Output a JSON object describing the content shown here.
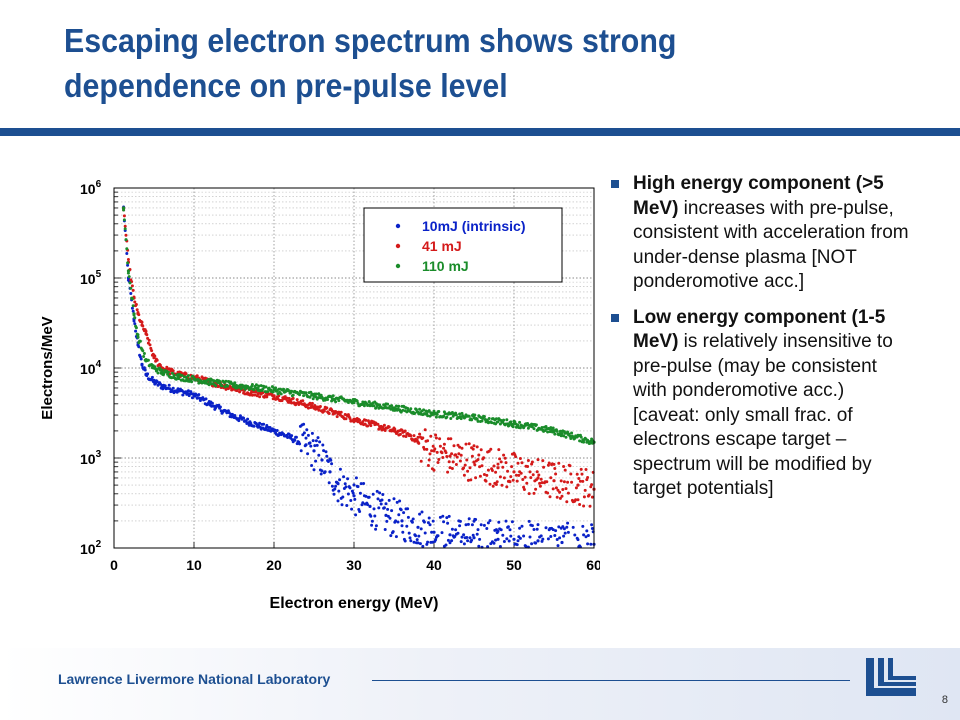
{
  "slide": {
    "title_line1": "Escaping electron spectrum shows strong",
    "title_line2": "dependence on pre-pulse level",
    "bullets": [
      {
        "bold": "High energy component (>5 MeV)",
        "text": " increases with pre-pulse, consistent with acceleration from under-dense plasma [NOT ponderomotive acc.]"
      },
      {
        "bold": "Low energy component (1-5 MeV)",
        "text": " is relatively insensitive to pre-pulse (may be consistent with ponderomotive acc.) [caveat: only small frac. of electrons escape target – spectrum will be modified by target potentials]"
      }
    ],
    "footer_org": "Lawrence Livermore National Laboratory",
    "page_number": "8",
    "colors": {
      "accent": "#1d4f91",
      "blue_series": "#0a22c8",
      "red_series": "#d41a1a",
      "green_series": "#1a8c2a"
    }
  },
  "chart_data": {
    "type": "scatter",
    "xlabel": "Electron energy (MeV)",
    "ylabel": "Electrons/MeV",
    "xlim": [
      0,
      60
    ],
    "ylim": [
      100,
      1000000
    ],
    "yscale": "log",
    "grid": true,
    "xticks": [
      0,
      10,
      20,
      30,
      40,
      50,
      60
    ],
    "yticks": [
      {
        "value": 100,
        "base": "10",
        "exp": "2"
      },
      {
        "value": 1000,
        "base": "10",
        "exp": "3"
      },
      {
        "value": 10000,
        "base": "10",
        "exp": "4"
      },
      {
        "value": 100000,
        "base": "10",
        "exp": "5"
      },
      {
        "value": 1000000,
        "base": "10",
        "exp": "6"
      }
    ],
    "legend_position": "top-right",
    "series": [
      {
        "name": "10mJ (intrinsic)",
        "color": "#0a22c8",
        "x": [
          1.2,
          1.8,
          2.5,
          3,
          3.5,
          4,
          5,
          6,
          8,
          10,
          12,
          15,
          18,
          20,
          22,
          24,
          25,
          26,
          27,
          28,
          30,
          32,
          34,
          36,
          38,
          40,
          42,
          45,
          48,
          50,
          53,
          56,
          60
        ],
        "y": [
          600000,
          100000,
          35000,
          18000,
          11000,
          8500,
          7000,
          6300,
          5600,
          5000,
          4000,
          2900,
          2300,
          2000,
          1700,
          1400,
          1200,
          950,
          700,
          520,
          380,
          290,
          230,
          200,
          170,
          150,
          140,
          130,
          125,
          125,
          120,
          115,
          110
        ]
      },
      {
        "name": "41 mJ",
        "color": "#d41a1a",
        "x": [
          1.2,
          1.8,
          2.5,
          3,
          3.5,
          4,
          5,
          6,
          8,
          10,
          12,
          15,
          18,
          20,
          22,
          25,
          28,
          30,
          32,
          35,
          37,
          38,
          40,
          42,
          45,
          48,
          50,
          53,
          55,
          58,
          60
        ],
        "y": [
          600000,
          150000,
          60000,
          40000,
          30000,
          24000,
          13000,
          10000,
          8500,
          7800,
          7000,
          5900,
          5200,
          4900,
          4400,
          3700,
          3100,
          2700,
          2400,
          2000,
          1800,
          1500,
          1200,
          1050,
          900,
          780,
          700,
          600,
          560,
          500,
          450
        ]
      },
      {
        "name": "110 mJ",
        "color": "#1a8c2a",
        "x": [
          1.2,
          1.8,
          2.5,
          3,
          4,
          5,
          6,
          8,
          10,
          12,
          15,
          18,
          20,
          25,
          30,
          35,
          40,
          45,
          50,
          55,
          60
        ],
        "y": [
          600000,
          120000,
          40000,
          22000,
          12000,
          10000,
          9000,
          8000,
          7500,
          7000,
          6400,
          6000,
          5700,
          4900,
          4200,
          3600,
          3100,
          2800,
          2400,
          2000,
          1500
        ]
      }
    ]
  }
}
